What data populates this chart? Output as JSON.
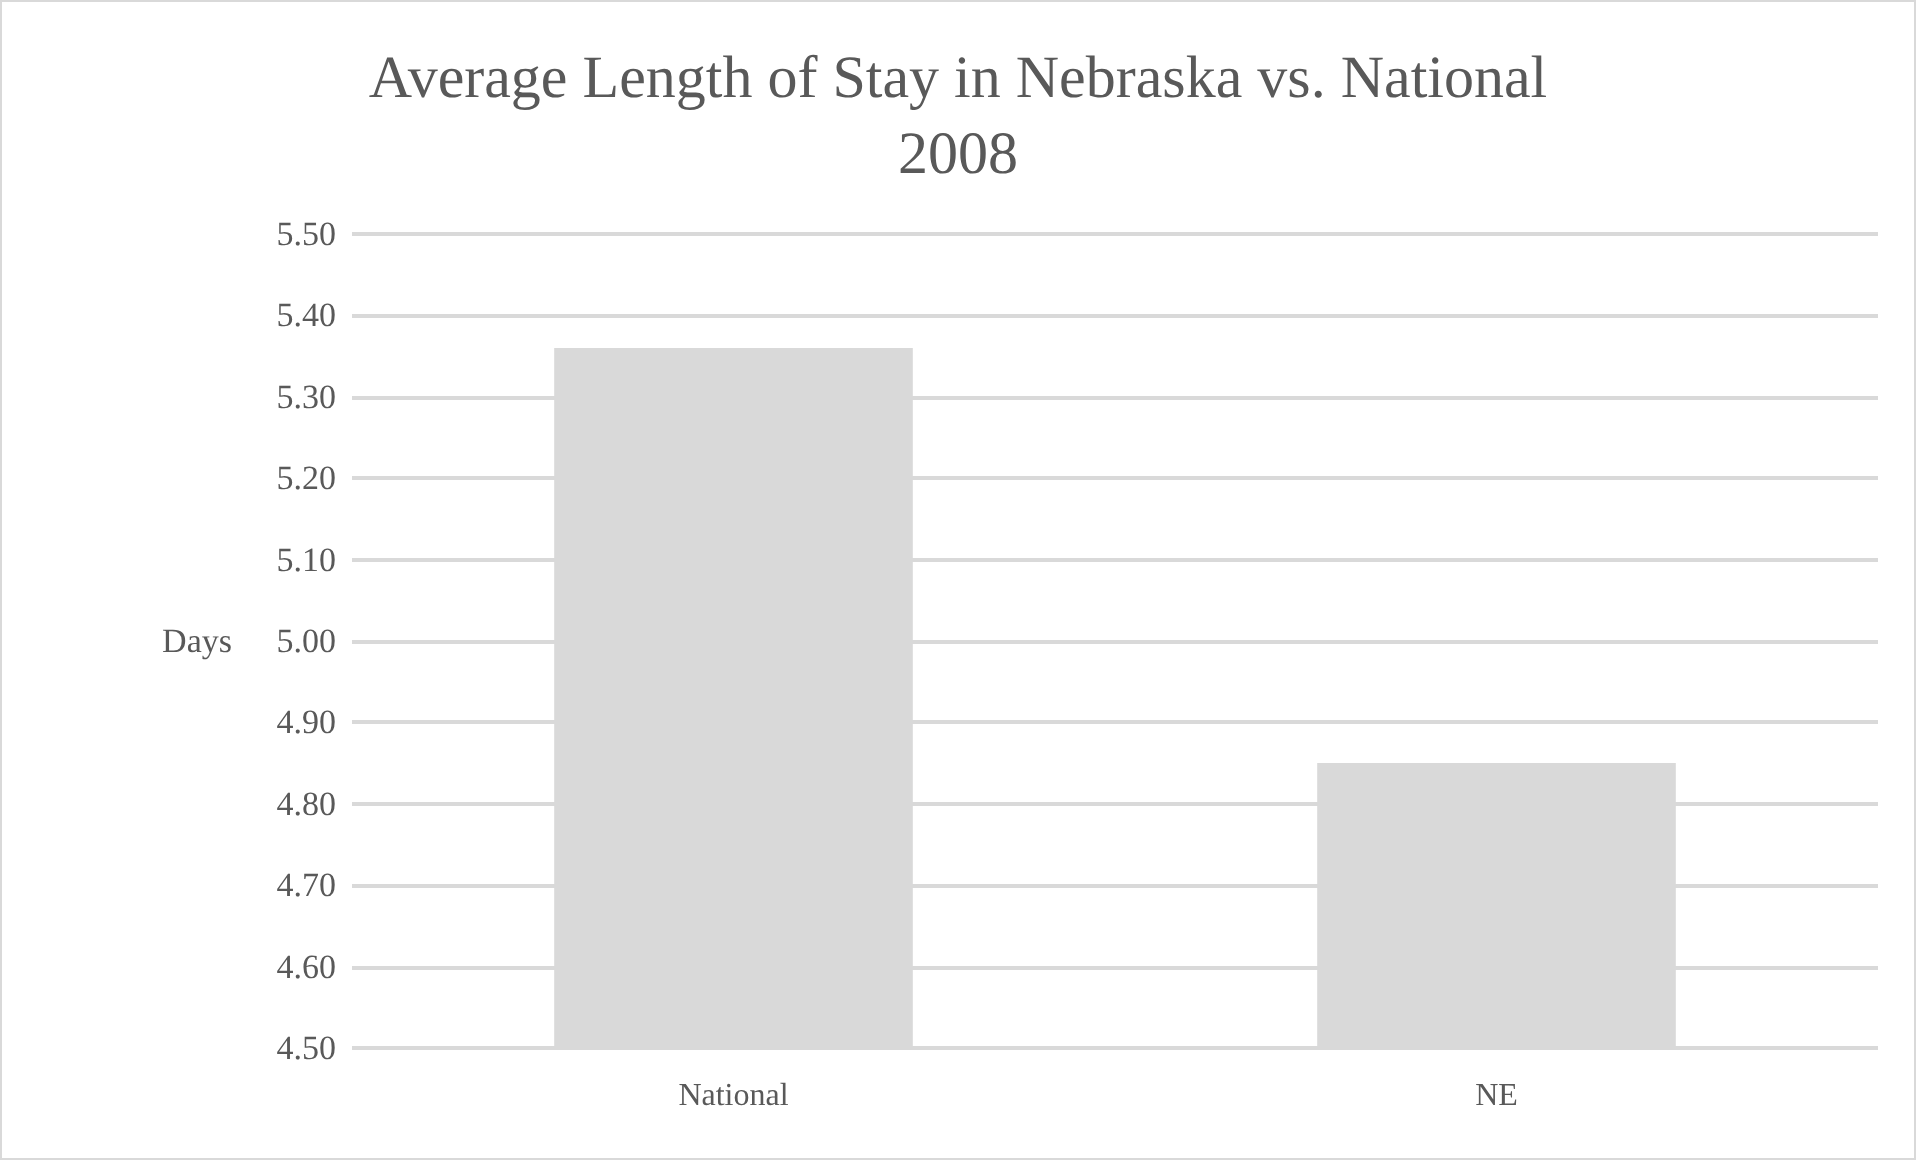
{
  "chart_data": {
    "type": "bar",
    "title": "Average Length of Stay in Nebraska vs. National\n2008",
    "ylabel": "Days",
    "categories": [
      "National",
      "NE"
    ],
    "values": [
      5.36,
      4.85
    ],
    "color": "#d9d9d9",
    "ylim": [
      4.5,
      5.5
    ],
    "yticks": [
      {
        "value": 4.5,
        "label": "4.50"
      },
      {
        "value": 4.6,
        "label": "4.60"
      },
      {
        "value": 4.7,
        "label": "4.70"
      },
      {
        "value": 4.8,
        "label": "4.80"
      },
      {
        "value": 4.9,
        "label": "4.90"
      },
      {
        "value": 5.0,
        "label": "5.00"
      },
      {
        "value": 5.1,
        "label": "5.10"
      },
      {
        "value": 5.2,
        "label": "5.20"
      },
      {
        "value": 5.3,
        "label": "5.30"
      },
      {
        "value": 5.4,
        "label": "5.40"
      },
      {
        "value": 5.5,
        "label": "5.50"
      }
    ],
    "grid": true
  }
}
